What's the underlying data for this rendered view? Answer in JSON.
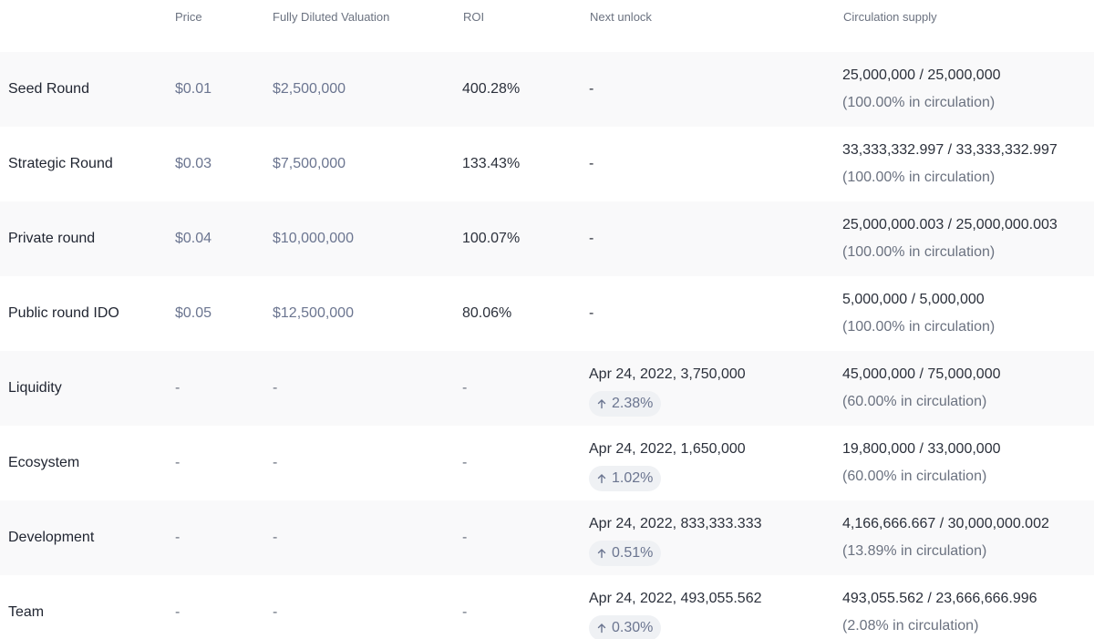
{
  "headers": {
    "price": "Price",
    "fdv": "Fully Diluted Valuation",
    "roi": "ROI",
    "next_unlock": "Next unlock",
    "circulation": "Circulation supply"
  },
  "rows": [
    {
      "name": "Seed Round",
      "price": "$0.01",
      "fdv": "$2,500,000",
      "roi": "400.28%",
      "unlock": "-",
      "unlock_pct": "",
      "circ_amount": "25,000,000 / 25,000,000",
      "circ_pct": "(100.00% in circulation)"
    },
    {
      "name": "Strategic Round",
      "price": "$0.03",
      "fdv": "$7,500,000",
      "roi": "133.43%",
      "unlock": "-",
      "unlock_pct": "",
      "circ_amount": "33,333,332.997 / 33,333,332.997",
      "circ_pct": "(100.00% in circulation)"
    },
    {
      "name": "Private round",
      "price": "$0.04",
      "fdv": "$10,000,000",
      "roi": "100.07%",
      "unlock": "-",
      "unlock_pct": "",
      "circ_amount": "25,000,000.003 / 25,000,000.003",
      "circ_pct": "(100.00% in circulation)"
    },
    {
      "name": "Public round IDO",
      "price": "$0.05",
      "fdv": "$12,500,000",
      "roi": "80.06%",
      "unlock": "-",
      "unlock_pct": "",
      "circ_amount": "5,000,000 / 5,000,000",
      "circ_pct": "(100.00% in circulation)"
    },
    {
      "name": "Liquidity",
      "price": "-",
      "fdv": "-",
      "roi": "-",
      "unlock": "Apr 24, 2022, 3,750,000",
      "unlock_pct": "2.38%",
      "circ_amount": "45,000,000 / 75,000,000",
      "circ_pct": "(60.00% in circulation)"
    },
    {
      "name": "Ecosystem",
      "price": "-",
      "fdv": "-",
      "roi": "-",
      "unlock": "Apr 24, 2022, 1,650,000",
      "unlock_pct": "1.02%",
      "circ_amount": "19,800,000 / 33,000,000",
      "circ_pct": "(60.00% in circulation)"
    },
    {
      "name": "Development",
      "price": "-",
      "fdv": "-",
      "roi": "-",
      "unlock": "Apr 24, 2022, 833,333.333",
      "unlock_pct": "0.51%",
      "circ_amount": "4,166,666.667 / 30,000,000.002",
      "circ_pct": "(13.89% in circulation)"
    },
    {
      "name": "Team",
      "price": "-",
      "fdv": "-",
      "roi": "-",
      "unlock": "Apr 24, 2022, 493,055.562",
      "unlock_pct": "0.30%",
      "circ_amount": "493,055.562 / 23,666,666.996",
      "circ_pct": "(2.08% in circulation)"
    }
  ],
  "icons": {
    "unlock_badge": "arrow-up-icon"
  },
  "colors": {
    "alt_row": "#f9f9fa",
    "badge_bg": "#eff1f4",
    "muted_text": "#6b7590"
  }
}
